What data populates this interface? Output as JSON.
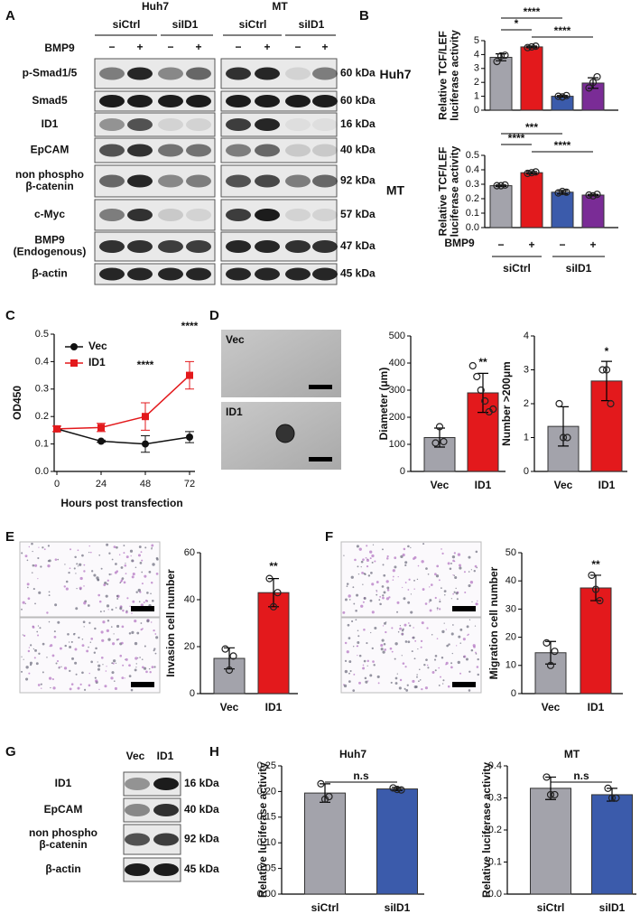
{
  "panel_labels": [
    "A",
    "B",
    "C",
    "D",
    "E",
    "F",
    "G",
    "H"
  ],
  "blot_a": {
    "cell_lines": [
      "Huh7",
      "MT"
    ],
    "conditions": [
      "siCtrl",
      "siID1",
      "siCtrl",
      "siID1"
    ],
    "treatment": "BMP9",
    "treatment_signs": [
      "−",
      "+",
      "−",
      "+",
      "−",
      "+",
      "−",
      "+"
    ],
    "rows": [
      {
        "label": [
          "p-Smad1/5"
        ],
        "size": "60 kDa"
      },
      {
        "label": [
          "Smad5"
        ],
        "size": "60 kDa"
      },
      {
        "label": [
          "ID1"
        ],
        "size": "16 kDa"
      },
      {
        "label": [
          "EpCAM"
        ],
        "size": "40 kDa"
      },
      {
        "label": [
          "non phospho",
          "β-catenin"
        ],
        "size": "92 kDa"
      },
      {
        "label": [
          "c-Myc"
        ],
        "size": "57 kDa"
      },
      {
        "label": [
          "BMP9",
          "(Endogenous)"
        ],
        "size": "47 kDa"
      },
      {
        "label": [
          "β-actin"
        ],
        "size": "45 kDa"
      }
    ]
  },
  "images_d": [
    "Vec",
    "ID1"
  ],
  "blot_g": {
    "columns": [
      "Vec",
      "ID1"
    ],
    "rows": [
      {
        "label": [
          "ID1"
        ],
        "size": "16 kDa"
      },
      {
        "label": [
          "EpCAM"
        ],
        "size": "40 kDa"
      },
      {
        "label": [
          "non phospho",
          "β-catenin"
        ],
        "size": "92 kDa"
      },
      {
        "label": [
          "β-actin"
        ],
        "size": "45 kDa"
      }
    ]
  },
  "chart_data": [
    {
      "type": "bar",
      "row_label": "Huh7",
      "y_label": [
        "Relative TCF/LEF",
        "luciferase activity"
      ],
      "categories": [
        null,
        null,
        null,
        null
      ],
      "values": [
        3.8,
        4.55,
        1.0,
        1.95
      ],
      "errors": [
        0.25,
        0.06,
        0.06,
        0.38
      ],
      "points": [
        [
          3.5,
          3.9,
          3.95
        ],
        [
          4.5,
          4.55,
          4.6
        ],
        [
          1.0,
          0.95,
          1.05
        ],
        [
          1.6,
          2.0,
          2.4
        ]
      ],
      "colors": [
        "#a3a3ab",
        "#e3191c",
        "#3b5bab",
        "#7a2c96"
      ],
      "ylim": [
        0,
        5
      ],
      "yticks": [
        0,
        1,
        2,
        3,
        4,
        5
      ],
      "annotations": [
        "****",
        "*",
        "****"
      ]
    },
    {
      "type": "bar",
      "row_label": "MT",
      "y_label": [
        "Relative TCF/LEF",
        "luciferase activity"
      ],
      "x_label": "BMP9",
      "categories": [
        "−",
        "+",
        "−",
        "+"
      ],
      "groups": [
        "siCtrl",
        "siID1"
      ],
      "values": [
        0.29,
        0.38,
        0.245,
        0.225
      ],
      "errors": [
        0.005,
        0.008,
        0.012,
        0.005
      ],
      "points": [
        [
          0.29,
          0.29,
          0.295
        ],
        [
          0.375,
          0.38,
          0.385
        ],
        [
          0.24,
          0.25,
          0.245
        ],
        [
          0.225,
          0.22,
          0.23
        ]
      ],
      "colors": [
        "#a3a3ab",
        "#e3191c",
        "#3b5bab",
        "#7a2c96"
      ],
      "ylim": [
        0,
        0.5
      ],
      "yticks": [
        {
          "value": 0,
          "label": "0.0"
        },
        0.1,
        0.2,
        0.3,
        0.4,
        0.5
      ],
      "annotations": [
        "***",
        "****",
        "****"
      ]
    },
    {
      "type": "line",
      "x_label": "Hours post transfection",
      "y_label": [
        "OD450"
      ],
      "x": [
        0,
        24,
        48,
        72
      ],
      "xlim": [
        0,
        72
      ],
      "xticks": [
        0,
        24,
        48,
        72
      ],
      "ylim": [
        0,
        0.5
      ],
      "yticks": [
        {
          "value": 0,
          "label": "0.0"
        },
        0.1,
        0.2,
        0.3,
        0.4,
        0.5
      ],
      "legend": "top-left",
      "series": [
        {
          "name": "Vec",
          "color": "#111111",
          "marker": "circle",
          "values": [
            0.155,
            0.11,
            0.1,
            0.125
          ],
          "errors": [
            0.01,
            0.004,
            0.03,
            0.02
          ]
        },
        {
          "name": "ID1",
          "color": "#e3191c",
          "marker": "square",
          "values": [
            0.155,
            0.16,
            0.2,
            0.35
          ],
          "errors": [
            0.01,
            0.015,
            0.05,
            0.05
          ]
        }
      ],
      "annotations": [
        "****",
        "****"
      ]
    },
    {
      "type": "bar",
      "y_label": [
        "Diameter (μm)"
      ],
      "categories": [
        "Vec",
        "ID1"
      ],
      "values": [
        125,
        290
      ],
      "errors": [
        35,
        72
      ],
      "points": [
        [
          105,
          165,
          110
        ],
        [
          390,
          350,
          300,
          260,
          220,
          230
        ]
      ],
      "colors": [
        "#a3a3ab",
        "#e3191c"
      ],
      "ylim": [
        0,
        500
      ],
      "yticks": [
        0,
        100,
        200,
        300,
        400,
        500
      ],
      "annotations": [
        "**"
      ]
    },
    {
      "type": "bar",
      "y_label": [
        "Number >200μm"
      ],
      "categories": [
        "Vec",
        "ID1"
      ],
      "values": [
        1.33,
        2.67
      ],
      "errors": [
        0.58,
        0.58
      ],
      "points": [
        [
          2,
          1,
          1
        ],
        [
          3,
          3,
          2
        ]
      ],
      "colors": [
        "#a3a3ab",
        "#e3191c"
      ],
      "ylim": [
        0,
        4
      ],
      "yticks": [
        0,
        1,
        2,
        3,
        4
      ],
      "annotations": [
        "*"
      ]
    },
    {
      "type": "bar",
      "y_label": [
        "Invasion cell number"
      ],
      "categories": [
        "Vec",
        "ID1"
      ],
      "values": [
        15,
        43
      ],
      "errors": [
        4.5,
        6
      ],
      "points": [
        [
          19,
          10,
          16
        ],
        [
          49,
          37,
          43
        ]
      ],
      "colors": [
        "#a3a3ab",
        "#e3191c"
      ],
      "ylim": [
        0,
        60
      ],
      "yticks": [
        0,
        20,
        40,
        60
      ],
      "annotations": [
        "**"
      ]
    },
    {
      "type": "bar",
      "y_label": [
        "Migration cell number"
      ],
      "categories": [
        "Vec",
        "ID1"
      ],
      "values": [
        14.5,
        37.5
      ],
      "errors": [
        4,
        4.5
      ],
      "points": [
        [
          18,
          10,
          15
        ],
        [
          42,
          37,
          33
        ]
      ],
      "colors": [
        "#a3a3ab",
        "#e3191c"
      ],
      "ylim": [
        0,
        50
      ],
      "yticks": [
        0,
        10,
        20,
        30,
        40,
        50
      ],
      "annotations": [
        "**"
      ]
    },
    {
      "type": "bar",
      "title": "Huh7",
      "y_label": [
        "Relative luciferase activity"
      ],
      "categories": [
        "siCtrl",
        "siID1"
      ],
      "values": [
        0.197,
        0.205
      ],
      "errors": [
        0.018,
        0.003
      ],
      "points": [
        [
          0.215,
          0.185,
          0.19
        ],
        [
          0.207,
          0.204,
          0.203
        ]
      ],
      "colors": [
        "#a3a3ab",
        "#3b5bab"
      ],
      "ylim": [
        0,
        0.25
      ],
      "yticks": [
        {
          "value": 0,
          "label": "0.00"
        },
        0.05,
        {
          "value": 0.1,
          "label": "0.10"
        },
        0.15,
        {
          "value": 0.2,
          "label": "0.20"
        },
        0.25
      ],
      "annotations": [
        "n.s"
      ]
    },
    {
      "type": "bar",
      "title": "MT",
      "y_label": [
        "Relative luciferase activity"
      ],
      "categories": [
        "siCtrl",
        "siID1"
      ],
      "values": [
        0.33,
        0.31
      ],
      "errors": [
        0.035,
        0.02
      ],
      "points": [
        [
          0.365,
          0.31,
          0.31
        ],
        [
          0.33,
          0.3,
          0.3
        ]
      ],
      "colors": [
        "#a3a3ab",
        "#3b5bab"
      ],
      "ylim": [
        0,
        0.4
      ],
      "yticks": [
        {
          "value": 0,
          "label": "0.0"
        },
        0.1,
        0.2,
        0.3,
        0.4
      ],
      "annotations": [
        "n.s"
      ]
    }
  ]
}
